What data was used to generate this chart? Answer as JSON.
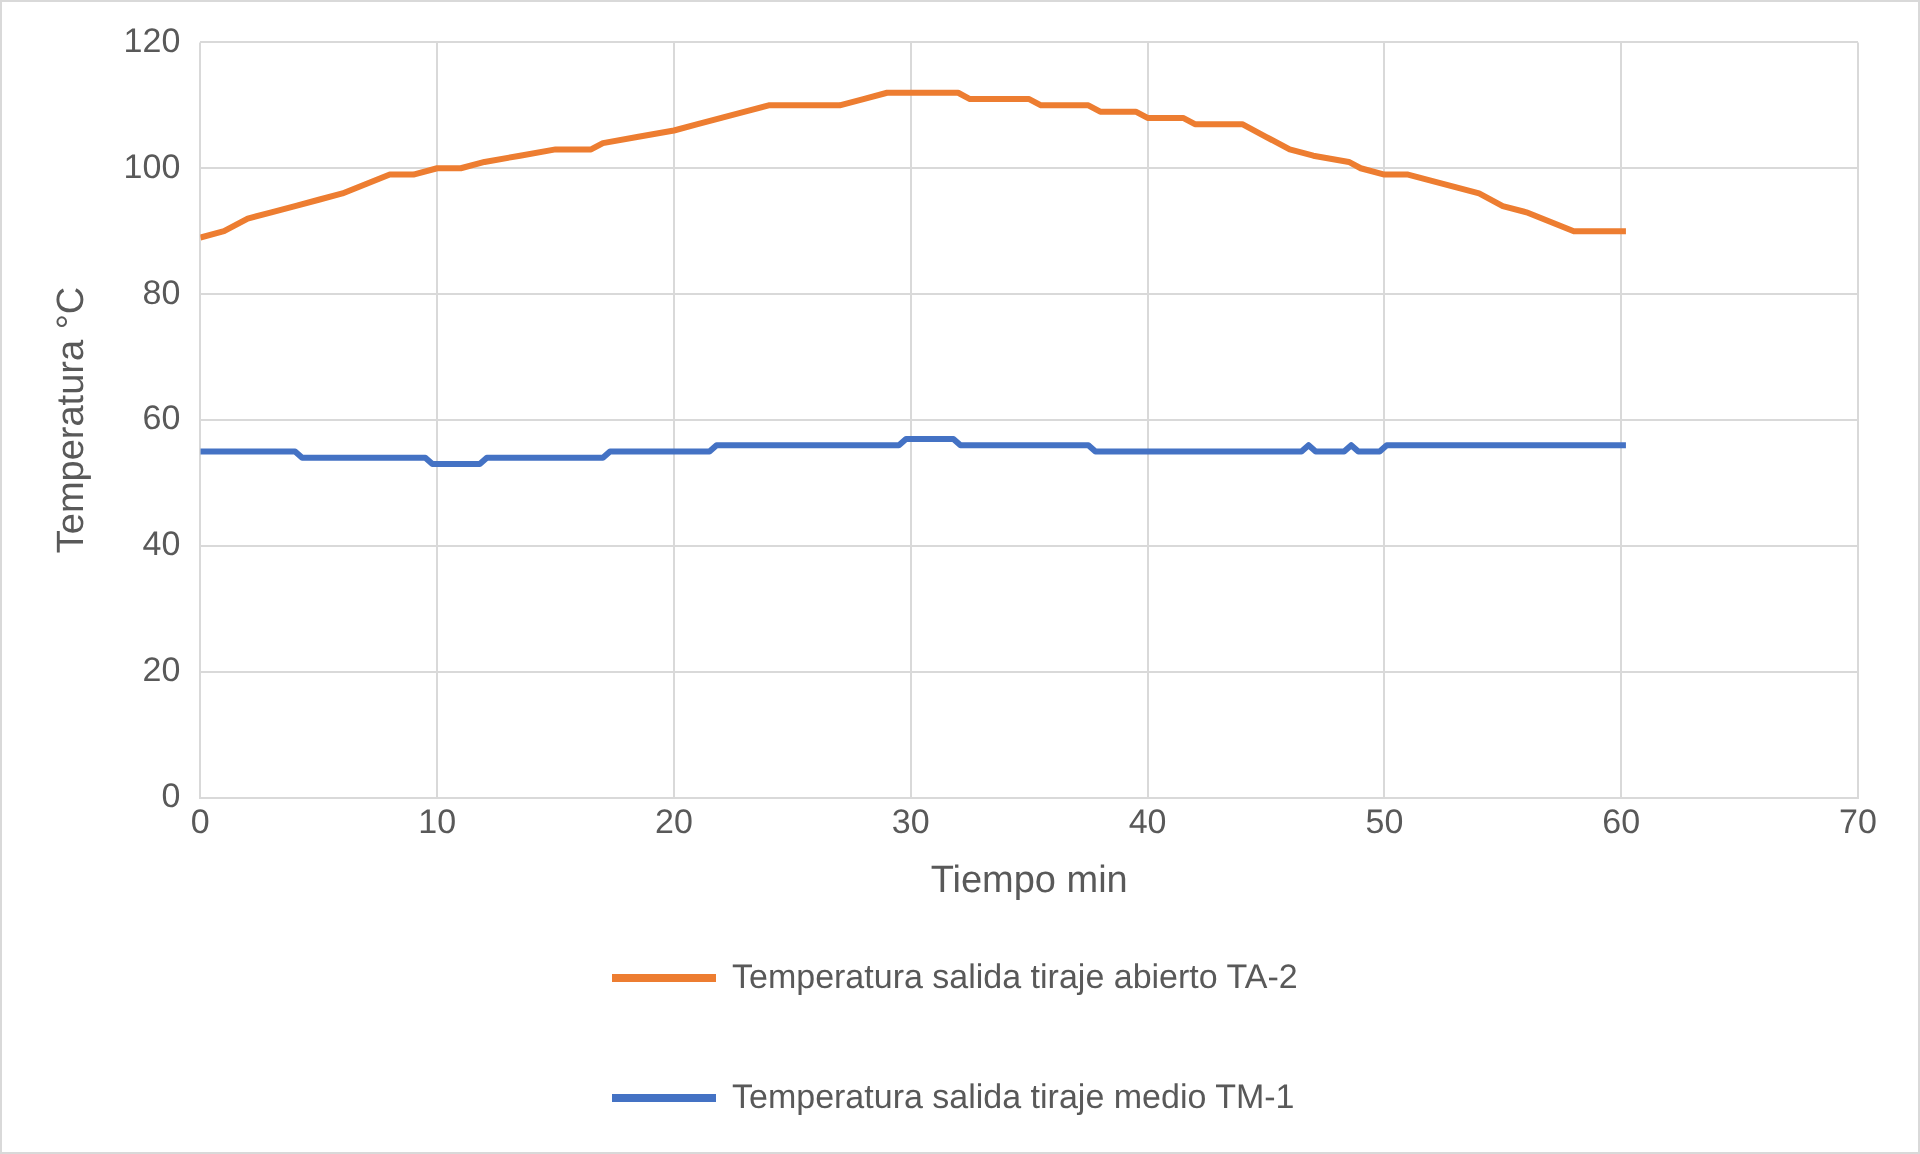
{
  "chart_data": {
    "type": "line",
    "xlabel": "Tiempo min",
    "ylabel": "Temperatura °C",
    "xlim": [
      0,
      70
    ],
    "xticks": [
      0,
      10,
      20,
      30,
      40,
      50,
      60,
      70
    ],
    "ylim": [
      0,
      120
    ],
    "yticks": [
      0,
      20,
      40,
      60,
      80,
      100,
      120
    ],
    "grid": true,
    "legend": "bottom",
    "marker": "none",
    "line_style": "solid",
    "series": [
      {
        "name": "Temperatura salida tiraje abierto TA-2",
        "color": "#ed7d31",
        "x": [
          0,
          1,
          2,
          3,
          4,
          5,
          6,
          7,
          8,
          9,
          10,
          11,
          12,
          13.5,
          15,
          16.5,
          17,
          18.5,
          20,
          21,
          22,
          23,
          24,
          27,
          28,
          29,
          32,
          32.5,
          35,
          35.5,
          37.5,
          38,
          39.5,
          40,
          41.5,
          42,
          44,
          45,
          46,
          47,
          48.5,
          49,
          50,
          51,
          52,
          53,
          54,
          55,
          56,
          57,
          58,
          60.2
        ],
        "values": [
          89,
          90,
          92,
          93,
          94,
          95,
          96,
          97.5,
          99,
          99,
          100,
          100,
          101,
          102,
          103,
          103,
          104,
          105,
          106,
          107,
          108,
          109,
          110,
          110,
          111,
          112,
          112,
          111,
          111,
          110,
          110,
          109,
          109,
          108,
          108,
          107,
          107,
          105,
          103,
          102,
          101,
          100,
          99,
          99,
          98,
          97,
          96,
          94,
          93,
          91.5,
          90,
          90
        ]
      },
      {
        "name": "Temperatura salida tiraje medio TM-1",
        "color": "#4472c4",
        "x": [
          0,
          4,
          4.3,
          9.5,
          9.8,
          11.8,
          12.1,
          17,
          17.3,
          21.5,
          21.8,
          29.5,
          29.8,
          31.8,
          32.1,
          37.5,
          37.8,
          46.5,
          46.8,
          47.1,
          48.3,
          48.6,
          48.9,
          49.8,
          50.1,
          60.2
        ],
        "values": [
          55,
          55,
          54,
          54,
          53,
          53,
          54,
          54,
          55,
          55,
          56,
          56,
          57,
          57,
          56,
          56,
          55,
          55,
          56,
          55,
          55,
          56,
          55,
          55,
          56,
          56
        ]
      }
    ]
  }
}
